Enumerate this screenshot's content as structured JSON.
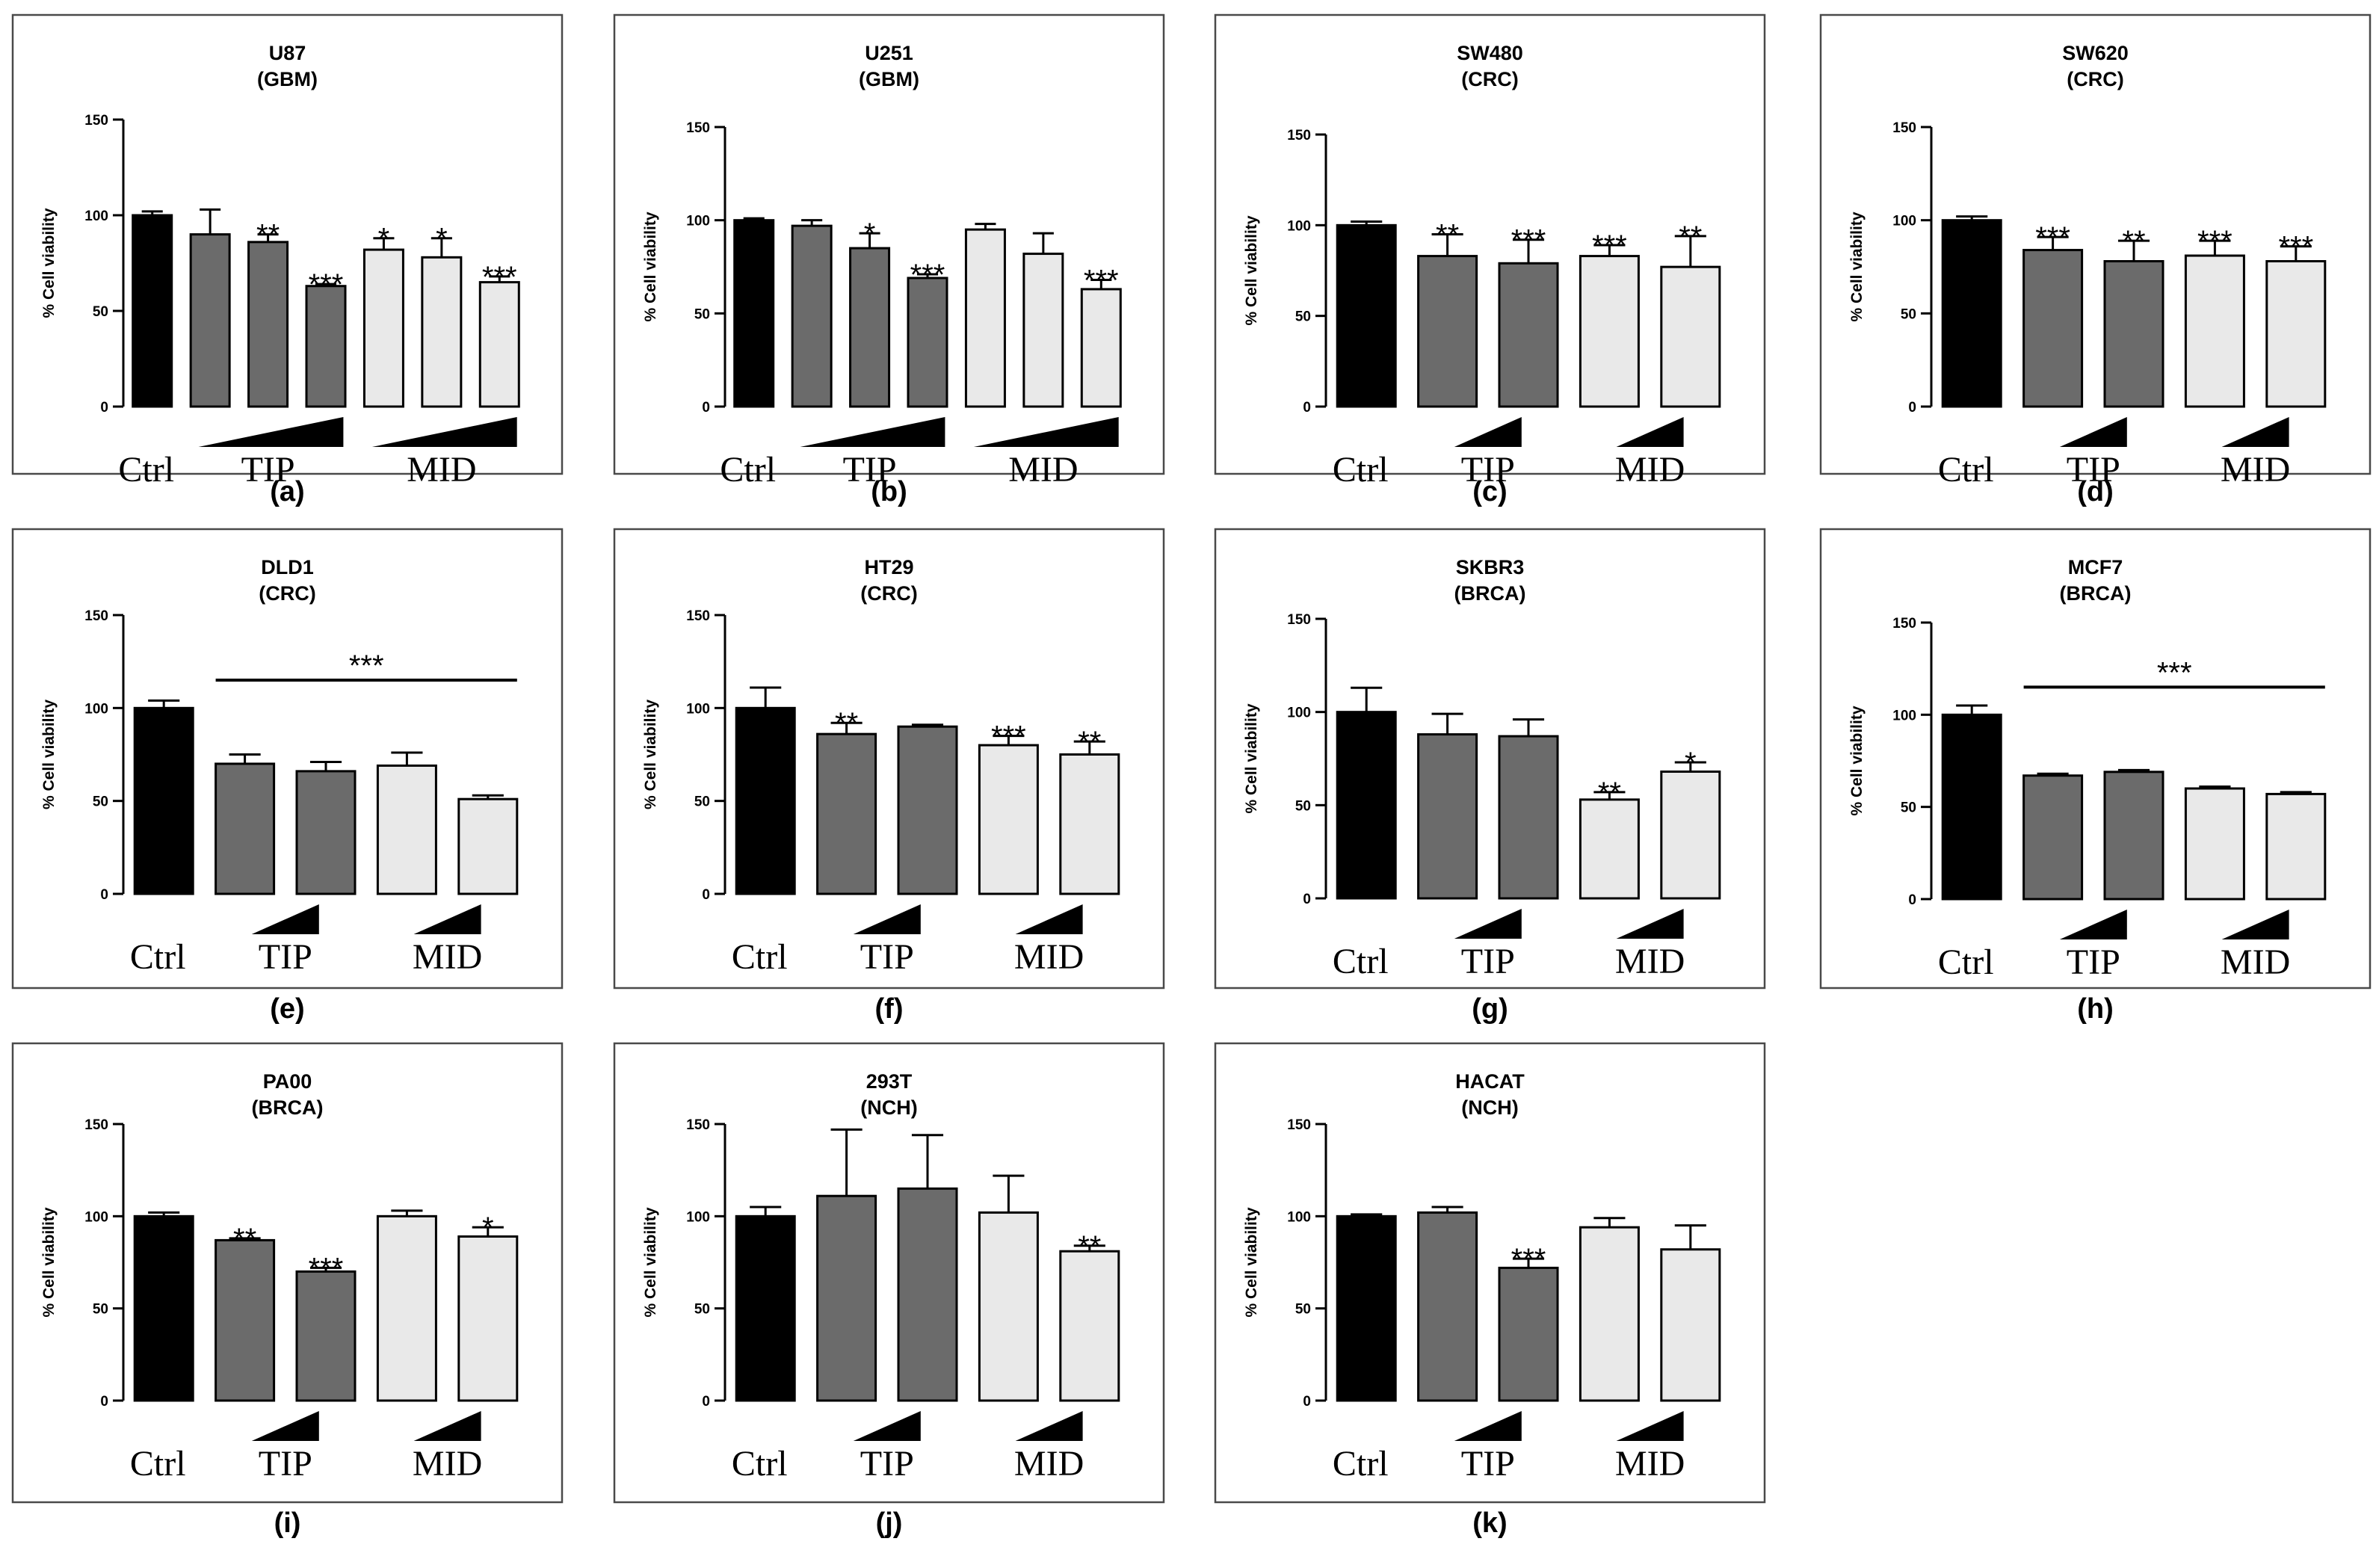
{
  "colors": {
    "ctrl": "#000000",
    "tip": "#6b6b6b",
    "mid": "#e9e9e9",
    "frame": "#4a4a4a"
  },
  "shared": {
    "ylabel": "% Cell viability",
    "yticks": [
      0,
      50,
      100,
      150
    ],
    "ylim": [
      0,
      150
    ],
    "group_labels": [
      "Ctrl",
      "TIP",
      "MID"
    ]
  },
  "chart_data": [
    {
      "type": "bar",
      "panel": "(a)",
      "title": "U87",
      "subtitle": "(GBM)",
      "categories": [
        "Ctrl",
        "TIP",
        "TIP",
        "TIP",
        "MID",
        "MID",
        "MID"
      ],
      "groups": [
        "ctrl",
        "tip",
        "tip",
        "tip",
        "mid",
        "mid",
        "mid"
      ],
      "values": [
        100,
        90,
        86,
        63,
        82,
        78,
        65
      ],
      "errors": [
        2,
        13,
        4,
        1,
        6,
        10,
        3
      ],
      "sig": [
        "",
        "",
        "**",
        "***",
        "*",
        "*",
        "***"
      ],
      "sig_bar": ""
    },
    {
      "type": "bar",
      "panel": "(b)",
      "title": "U251",
      "subtitle": "(GBM)",
      "categories": [
        "Ctrl",
        "TIP",
        "TIP",
        "TIP",
        "MID",
        "MID",
        "MID"
      ],
      "groups": [
        "ctrl",
        "tip",
        "tip",
        "tip",
        "mid",
        "mid",
        "mid"
      ],
      "values": [
        100,
        97,
        85,
        69,
        95,
        82,
        63
      ],
      "errors": [
        1,
        3,
        8,
        2,
        3,
        11,
        5
      ],
      "sig": [
        "",
        "",
        "*",
        "***",
        "",
        "",
        "***"
      ],
      "sig_bar": ""
    },
    {
      "type": "bar",
      "panel": "(c)",
      "title": "SW480",
      "subtitle": "(CRC)",
      "categories": [
        "Ctrl",
        "TIP",
        "TIP",
        "MID",
        "MID"
      ],
      "groups": [
        "ctrl",
        "tip",
        "tip",
        "mid",
        "mid"
      ],
      "values": [
        100,
        83,
        79,
        83,
        77
      ],
      "errors": [
        2,
        12,
        13,
        6,
        17
      ],
      "sig": [
        "",
        "**",
        "***",
        "***",
        "**"
      ],
      "sig_bar": ""
    },
    {
      "type": "bar",
      "panel": "(d)",
      "title": "SW620",
      "subtitle": "(CRC)",
      "categories": [
        "Ctrl",
        "TIP",
        "TIP",
        "MID",
        "MID"
      ],
      "groups": [
        "ctrl",
        "tip",
        "tip",
        "mid",
        "mid"
      ],
      "values": [
        100,
        84,
        78,
        81,
        78
      ],
      "errors": [
        2,
        7,
        11,
        8,
        8
      ],
      "sig": [
        "",
        "***",
        "**",
        "***",
        "***"
      ],
      "sig_bar": ""
    },
    {
      "type": "bar",
      "panel": "(e)",
      "title": "DLD1",
      "subtitle": "(CRC)",
      "categories": [
        "Ctrl",
        "TIP",
        "TIP",
        "MID",
        "MID"
      ],
      "groups": [
        "ctrl",
        "tip",
        "tip",
        "mid",
        "mid"
      ],
      "values": [
        100,
        70,
        66,
        69,
        51
      ],
      "errors": [
        4,
        5,
        5,
        7,
        2
      ],
      "sig": [
        "",
        "",
        "",
        "",
        ""
      ],
      "sig_bar": "***"
    },
    {
      "type": "bar",
      "panel": "(f)",
      "title": "HT29",
      "subtitle": "(CRC)",
      "categories": [
        "Ctrl",
        "TIP",
        "TIP",
        "MID",
        "MID"
      ],
      "groups": [
        "ctrl",
        "tip",
        "tip",
        "mid",
        "mid"
      ],
      "values": [
        100,
        86,
        90,
        80,
        75
      ],
      "errors": [
        11,
        6,
        1,
        5,
        7
      ],
      "sig": [
        "",
        "**",
        "",
        "***",
        "**"
      ],
      "sig_bar": ""
    },
    {
      "type": "bar",
      "panel": "(g)",
      "title": "SKBR3",
      "subtitle": "(BRCA)",
      "categories": [
        "Ctrl",
        "TIP",
        "TIP",
        "MID",
        "MID"
      ],
      "groups": [
        "ctrl",
        "tip",
        "tip",
        "mid",
        "mid"
      ],
      "values": [
        100,
        88,
        87,
        53,
        68
      ],
      "errors": [
        13,
        11,
        9,
        4,
        5
      ],
      "sig": [
        "",
        "",
        "",
        "**",
        "*"
      ],
      "sig_bar": ""
    },
    {
      "type": "bar",
      "panel": "(h)",
      "title": "MCF7",
      "subtitle": "(BRCA)",
      "categories": [
        "Ctrl",
        "TIP",
        "TIP",
        "MID",
        "MID"
      ],
      "groups": [
        "ctrl",
        "tip",
        "tip",
        "mid",
        "mid"
      ],
      "values": [
        100,
        67,
        69,
        60,
        57
      ],
      "errors": [
        5,
        1,
        1,
        1,
        1
      ],
      "sig": [
        "",
        "",
        "",
        "",
        ""
      ],
      "sig_bar": "***"
    },
    {
      "type": "bar",
      "panel": "(i)",
      "title": "PA00",
      "subtitle": "(BRCA)",
      "categories": [
        "Ctrl",
        "TIP",
        "TIP",
        "MID",
        "MID"
      ],
      "groups": [
        "ctrl",
        "tip",
        "tip",
        "mid",
        "mid"
      ],
      "values": [
        100,
        87,
        70,
        100,
        89
      ],
      "errors": [
        2,
        1,
        2,
        3,
        5
      ],
      "sig": [
        "",
        "**",
        "***",
        "",
        "*"
      ],
      "sig_bar": ""
    },
    {
      "type": "bar",
      "panel": "(j)",
      "title": "293T",
      "subtitle": "(NCH)",
      "categories": [
        "Ctrl",
        "TIP",
        "TIP",
        "MID",
        "MID"
      ],
      "groups": [
        "ctrl",
        "tip",
        "tip",
        "mid",
        "mid"
      ],
      "values": [
        100,
        111,
        115,
        102,
        81
      ],
      "errors": [
        5,
        36,
        29,
        20,
        3
      ],
      "sig": [
        "",
        "",
        "",
        "",
        "**"
      ],
      "sig_bar": ""
    },
    {
      "type": "bar",
      "panel": "(k)",
      "title": "HACAT",
      "subtitle": "(NCH)",
      "categories": [
        "Ctrl",
        "TIP",
        "TIP",
        "MID",
        "MID"
      ],
      "groups": [
        "ctrl",
        "tip",
        "tip",
        "mid",
        "mid"
      ],
      "values": [
        100,
        102,
        72,
        94,
        82
      ],
      "errors": [
        1,
        3,
        5,
        5,
        13
      ],
      "sig": [
        "",
        "",
        "***",
        "",
        ""
      ],
      "sig_bar": ""
    }
  ]
}
